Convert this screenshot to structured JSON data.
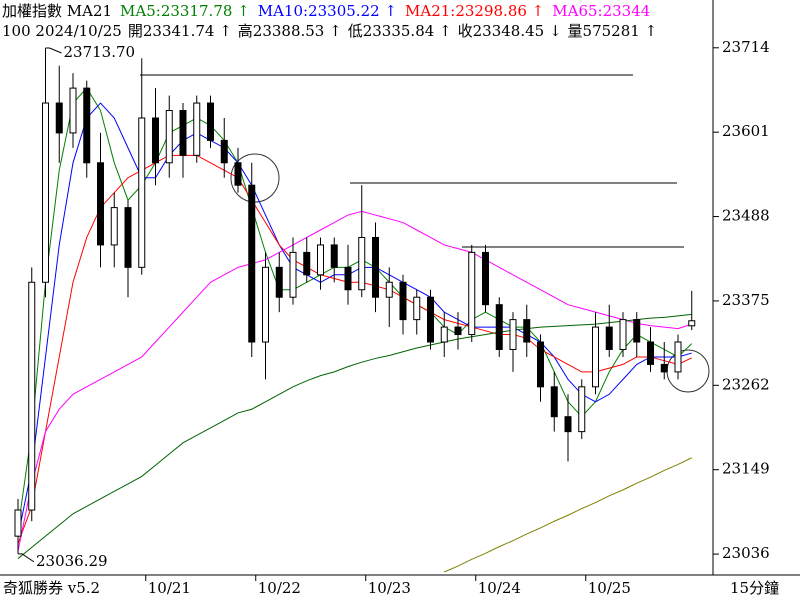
{
  "chart_data": {
    "type": "candlestick",
    "header": {
      "line1": [
        {
          "text": "加權指數 MA21",
          "color": "#000000"
        },
        {
          "text": "MA5:23317.78 ↑",
          "color": "#008000"
        },
        {
          "text": "MA10:23305.22 ↑",
          "color": "#0000ff"
        },
        {
          "text": "MA21:23298.86 ↑",
          "color": "#ff0000"
        },
        {
          "text": "MA65:23344",
          "color": "#ff00ff"
        }
      ],
      "line2": [
        "100 2024/10/25",
        "開23341.74 ↑",
        "高23388.53 ↑",
        "低23335.84 ↑",
        "收23348.45 ↓",
        "量575281 ↑"
      ]
    },
    "footer_left": "奇狐勝券 v5.2",
    "footer_right": "15分鐘",
    "annotations": [
      {
        "text": "23713.70",
        "value": 23713.7,
        "index": 2
      },
      {
        "text": "23036.29",
        "value": 23036.29,
        "index": 0
      }
    ],
    "categories": [
      null,
      null,
      null,
      null,
      null,
      null,
      null,
      null,
      null,
      "10/21",
      null,
      null,
      null,
      null,
      null,
      null,
      null,
      "10/22",
      null,
      null,
      null,
      null,
      null,
      null,
      null,
      "10/23",
      null,
      null,
      null,
      null,
      null,
      null,
      null,
      "10/24",
      null,
      null,
      null,
      null,
      null,
      null,
      null,
      "10/25",
      null,
      null,
      null,
      null,
      null,
      null,
      null,
      null
    ],
    "open": [
      23060,
      23095,
      23400,
      23640,
      23600,
      23660,
      23560,
      23450,
      23500,
      23420,
      23620,
      23560,
      23630,
      23570,
      23640,
      23590,
      23560,
      23530,
      23320,
      23420,
      23380,
      23440,
      23410,
      23450,
      23420,
      23390,
      23460,
      23380,
      23400,
      23350,
      23380,
      23320,
      23340,
      23330,
      23440,
      23370,
      23310,
      23350,
      23320,
      23260,
      23220,
      23200,
      23260,
      23340,
      23310,
      23350,
      23320,
      23290,
      23280,
      23341.74
    ],
    "high": [
      23110,
      23420,
      23713.7,
      23690,
      23680,
      23670,
      23600,
      23520,
      23510,
      23700,
      23660,
      23650,
      23640,
      23650,
      23650,
      23620,
      23580,
      23560,
      23440,
      23440,
      23460,
      23460,
      23460,
      23460,
      23450,
      23530,
      23480,
      23420,
      23410,
      23390,
      23390,
      23360,
      23360,
      23450,
      23450,
      23380,
      23360,
      23370,
      23330,
      23280,
      23250,
      23270,
      23360,
      23370,
      23360,
      23360,
      23340,
      23320,
      23330,
      23388.53
    ],
    "low": [
      23036.29,
      23080,
      23380,
      23560,
      23580,
      23540,
      23420,
      23420,
      23380,
      23410,
      23530,
      23540,
      23540,
      23560,
      23580,
      23540,
      23520,
      23300,
      23270,
      23360,
      23370,
      23400,
      23390,
      23400,
      23370,
      23380,
      23360,
      23340,
      23330,
      23330,
      23310,
      23300,
      23310,
      23320,
      23360,
      23300,
      23280,
      23300,
      23240,
      23200,
      23160,
      23190,
      23250,
      23300,
      23300,
      23300,
      23280,
      23270,
      23270,
      23335.84
    ],
    "close": [
      23095,
      23400,
      23640,
      23600,
      23660,
      23560,
      23450,
      23500,
      23420,
      23620,
      23560,
      23630,
      23570,
      23640,
      23590,
      23560,
      23530,
      23320,
      23420,
      23380,
      23440,
      23410,
      23450,
      23420,
      23390,
      23460,
      23380,
      23400,
      23350,
      23380,
      23320,
      23340,
      23330,
      23440,
      23370,
      23310,
      23350,
      23320,
      23260,
      23220,
      23200,
      23260,
      23340,
      23310,
      23350,
      23320,
      23290,
      23280,
      23320,
      23348.45
    ],
    "up_color": "#ffffff",
    "down_color": "#000000",
    "lines": [
      {
        "color": "#008000",
        "values": [
          23070,
          23200,
          23400,
          23550,
          23640,
          23660,
          23630,
          23560,
          23510,
          23530,
          23560,
          23600,
          23610,
          23620,
          23610,
          23590,
          23560,
          23500,
          23440,
          23390,
          23390,
          23400,
          23410,
          23420,
          23420,
          23430,
          23420,
          23400,
          23380,
          23370,
          23360,
          23340,
          23330,
          23350,
          23360,
          23350,
          23340,
          23340,
          23320,
          23280,
          23240,
          23220,
          23240,
          23280,
          23310,
          23330,
          23320,
          23310,
          23300,
          23317.78
        ]
      },
      {
        "color": "#0000ff",
        "values": [
          23060,
          23150,
          23300,
          23450,
          23560,
          23620,
          23640,
          23620,
          23580,
          23540,
          23540,
          23570,
          23590,
          23600,
          23590,
          23580,
          23560,
          23530,
          23490,
          23450,
          23420,
          23410,
          23400,
          23410,
          23410,
          23420,
          23420,
          23410,
          23400,
          23390,
          23380,
          23360,
          23350,
          23340,
          23340,
          23340,
          23340,
          23330,
          23320,
          23300,
          23270,
          23250,
          23240,
          23250,
          23270,
          23290,
          23300,
          23300,
          23300,
          23305.22
        ]
      },
      {
        "color": "#ff0000",
        "values": [
          23050,
          23100,
          23200,
          23300,
          23400,
          23460,
          23500,
          23520,
          23540,
          23550,
          23560,
          23570,
          23570,
          23570,
          23560,
          23550,
          23540,
          23510,
          23480,
          23450,
          23430,
          23420,
          23410,
          23405,
          23400,
          23400,
          23395,
          23390,
          23380,
          23370,
          23360,
          23350,
          23345,
          23340,
          23335,
          23330,
          23330,
          23325,
          23310,
          23300,
          23290,
          23280,
          23280,
          23285,
          23290,
          23300,
          23300,
          23295,
          23290,
          23298.86
        ]
      },
      {
        "color": "#ff00ff",
        "values": [
          23040,
          23130,
          23200,
          23230,
          23250,
          23260,
          23270,
          23280,
          23290,
          23300,
          23320,
          23340,
          23360,
          23380,
          23400,
          23410,
          23420,
          23425,
          23430,
          23440,
          23450,
          23460,
          23470,
          23480,
          23490,
          23495,
          23490,
          23485,
          23480,
          23470,
          23460,
          23450,
          23445,
          23440,
          23430,
          23420,
          23410,
          23400,
          23390,
          23380,
          23370,
          23365,
          23360,
          23355,
          23350,
          23345,
          23342,
          23340,
          23338,
          23344
        ]
      },
      {
        "color": "#006400",
        "values": [
          23030,
          23045,
          23060,
          23075,
          23090,
          23100,
          23110,
          23120,
          23130,
          23140,
          23155,
          23170,
          23185,
          23195,
          23205,
          23215,
          23225,
          23230,
          23240,
          23250,
          23260,
          23268,
          23275,
          23280,
          23287,
          23293,
          23298,
          23302,
          23307,
          23312,
          23316,
          23320,
          23324,
          23327,
          23330,
          23333,
          23336,
          23338,
          23340,
          23341,
          23342,
          23343,
          23344,
          23346,
          23348,
          23350,
          23352,
          23353,
          23355,
          23357
        ]
      },
      {
        "color": "#808000",
        "values": [
          null,
          null,
          null,
          null,
          null,
          null,
          null,
          null,
          null,
          null,
          null,
          null,
          null,
          null,
          null,
          null,
          null,
          null,
          null,
          null,
          null,
          null,
          null,
          null,
          null,
          null,
          null,
          null,
          null,
          null,
          null,
          23012,
          23020,
          23029,
          23037,
          23046,
          23054,
          23063,
          23071,
          23080,
          23088,
          23097,
          23105,
          23114,
          23122,
          23131,
          23139,
          23148,
          23156,
          23165
        ]
      }
    ],
    "ylim": [
      23008,
      23778
    ],
    "yticks": [
      23036,
      23149,
      23262,
      23375,
      23488,
      23601,
      23714
    ]
  }
}
